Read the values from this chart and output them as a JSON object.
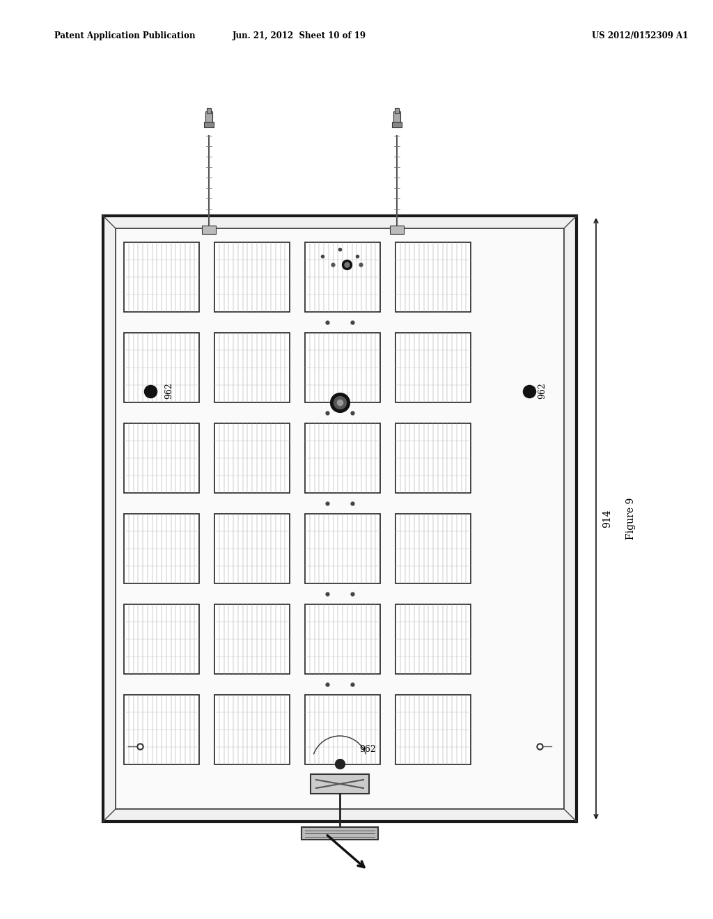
{
  "title_left": "Patent Application Publication",
  "title_center": "Jun. 21, 2012  Sheet 10 of 19",
  "title_right": "US 2012/0152309 A1",
  "figure_label": "Figure 9",
  "side_label": "914",
  "bg_color": "#ffffff"
}
